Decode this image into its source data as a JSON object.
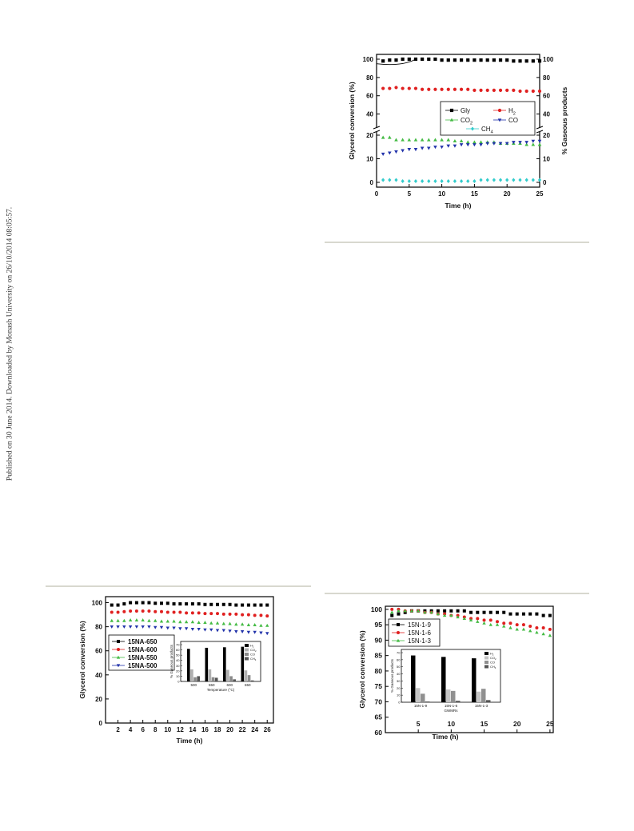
{
  "side_note": "Published on 30 June 2014. Downloaded by Monash University on 26/10/2014 08:05:57.",
  "chart_data": [
    {
      "id": "fig_top_right",
      "type": "scatter",
      "xlabel": "Time (h)",
      "ylabel_left": "Glycerol conversion (%)",
      "ylabel_right": "% Gaseous products",
      "xlim": [
        0,
        25
      ],
      "x_ticks": [
        0,
        5,
        10,
        15,
        20,
        25
      ],
      "y_upper_ticks": [
        40,
        60,
        80,
        100
      ],
      "y_lower_ticks": [
        0,
        10,
        20
      ],
      "axis_break": true,
      "legend_placement": "center-right",
      "series": [
        {
          "name": "Gly",
          "color": "#000000",
          "marker": "square",
          "panel": "upper",
          "x": [
            1,
            2,
            3,
            4,
            5,
            6,
            7,
            8,
            9,
            10,
            11,
            12,
            13,
            14,
            15,
            16,
            17,
            18,
            19,
            20,
            21,
            22,
            23,
            24,
            25
          ],
          "values": [
            98,
            99,
            99,
            100,
            100,
            100,
            100,
            100,
            100,
            99,
            99,
            99,
            99,
            99,
            99,
            99,
            99,
            99,
            99,
            99,
            98,
            98,
            98,
            98,
            98
          ]
        },
        {
          "name": "H2",
          "color": "#e02020",
          "marker": "circle",
          "panel": "upper",
          "x": [
            1,
            2,
            3,
            4,
            5,
            6,
            7,
            8,
            9,
            10,
            11,
            12,
            13,
            14,
            15,
            16,
            17,
            18,
            19,
            20,
            21,
            22,
            23,
            24,
            25
          ],
          "values": [
            68,
            68,
            69,
            68,
            68,
            68,
            67,
            67,
            67,
            67,
            67,
            67,
            67,
            67,
            66,
            66,
            66,
            66,
            66,
            66,
            66,
            65,
            65,
            65,
            65
          ]
        },
        {
          "name": "CO2",
          "color": "#44bb44",
          "marker": "triangle-up",
          "panel": "lower",
          "x": [
            1,
            2,
            3,
            4,
            5,
            6,
            7,
            8,
            9,
            10,
            11,
            12,
            13,
            14,
            15,
            16,
            17,
            18,
            19,
            20,
            21,
            22,
            23,
            24,
            25
          ],
          "values": [
            19,
            19,
            18,
            18,
            18,
            18,
            18,
            18,
            18,
            18,
            18,
            17.5,
            17.5,
            17,
            17,
            17,
            17,
            17,
            16.5,
            16.5,
            16.5,
            16.5,
            16,
            16,
            16
          ]
        },
        {
          "name": "CO",
          "color": "#2233aa",
          "marker": "triangle-down",
          "panel": "lower",
          "x": [
            1,
            2,
            3,
            4,
            5,
            6,
            7,
            8,
            9,
            10,
            11,
            12,
            13,
            14,
            15,
            16,
            17,
            18,
            19,
            20,
            21,
            22,
            23,
            24,
            25
          ],
          "values": [
            12,
            12.5,
            13,
            13.5,
            14,
            14,
            14.5,
            14.5,
            15,
            15,
            15.5,
            15.5,
            16,
            16,
            16,
            16,
            16.5,
            16.5,
            16.5,
            16.5,
            17,
            17,
            17,
            17.5,
            17.5
          ]
        },
        {
          "name": "CH4",
          "color": "#33cccc",
          "marker": "diamond",
          "panel": "lower",
          "x": [
            1,
            2,
            3,
            4,
            5,
            6,
            7,
            8,
            9,
            10,
            11,
            12,
            13,
            14,
            15,
            16,
            17,
            18,
            19,
            20,
            21,
            22,
            23,
            24,
            25
          ],
          "values": [
            1,
            1,
            1,
            0.5,
            0.5,
            0.5,
            0.5,
            0.5,
            0.5,
            0.5,
            0.5,
            0.5,
            0.5,
            0.5,
            0.5,
            1,
            1,
            1,
            1,
            1,
            1,
            1,
            1,
            1,
            1
          ]
        }
      ],
      "legend_entries": [
        "Gly",
        "H2",
        "CO2",
        "CO",
        "CH4"
      ]
    },
    {
      "id": "fig_bottom_left",
      "type": "scatter",
      "xlabel": "Time (h)",
      "ylabel": "Glycerol conversion (%)",
      "xlim": [
        0,
        27
      ],
      "ylim": [
        0,
        105
      ],
      "x_ticks": [
        2,
        4,
        6,
        8,
        10,
        12,
        14,
        16,
        18,
        20,
        22,
        24,
        26
      ],
      "y_ticks": [
        0,
        20,
        40,
        60,
        80,
        100
      ],
      "legend_placement": "left",
      "series": [
        {
          "name": "15NA-650",
          "color": "#000000",
          "marker": "square",
          "x": [
            1,
            2,
            3,
            4,
            5,
            6,
            7,
            8,
            9,
            10,
            11,
            12,
            13,
            14,
            15,
            16,
            17,
            18,
            19,
            20,
            21,
            22,
            23,
            24,
            25,
            26
          ],
          "values": [
            98,
            98,
            99,
            100,
            100,
            100,
            100,
            99.5,
            99.5,
            99.5,
            99,
            99,
            99,
            99,
            99,
            98.5,
            98.5,
            98.5,
            98.5,
            98.5,
            98,
            98,
            98,
            98,
            98,
            98
          ]
        },
        {
          "name": "15NA-600",
          "color": "#e02020",
          "marker": "circle",
          "x": [
            1,
            2,
            3,
            4,
            5,
            6,
            7,
            8,
            9,
            10,
            11,
            12,
            13,
            14,
            15,
            16,
            17,
            18,
            19,
            20,
            21,
            22,
            23,
            24,
            25,
            26
          ],
          "values": [
            92,
            92,
            92.5,
            93,
            93,
            93,
            93,
            92.5,
            92.5,
            92,
            92,
            92,
            91.5,
            91.5,
            91.5,
            91,
            91,
            91,
            90.5,
            90.5,
            90.5,
            90,
            90,
            89.5,
            89.5,
            89
          ]
        },
        {
          "name": "15NA-550",
          "color": "#44bb44",
          "marker": "triangle-up",
          "x": [
            1,
            2,
            3,
            4,
            5,
            6,
            7,
            8,
            9,
            10,
            11,
            12,
            13,
            14,
            15,
            16,
            17,
            18,
            19,
            20,
            21,
            22,
            23,
            24,
            25,
            26
          ],
          "values": [
            85,
            85,
            85,
            85.5,
            85.5,
            85.5,
            85,
            85,
            84.5,
            84.5,
            84.5,
            84,
            84,
            84,
            83.5,
            83.5,
            83,
            83,
            82.5,
            82.5,
            82,
            82,
            81.5,
            81.5,
            81,
            81
          ]
        },
        {
          "name": "15NA-500",
          "color": "#2233aa",
          "marker": "triangle-down",
          "x": [
            1,
            2,
            3,
            4,
            5,
            6,
            7,
            8,
            9,
            10,
            11,
            12,
            13,
            14,
            15,
            16,
            17,
            18,
            19,
            20,
            21,
            22,
            23,
            24,
            25,
            26
          ],
          "values": [
            80,
            80,
            80,
            80,
            80,
            80,
            80,
            79.5,
            79.5,
            79,
            79,
            78.5,
            78.5,
            78,
            78,
            77.5,
            77.5,
            77,
            77,
            76.5,
            76,
            76,
            75.5,
            75.5,
            75,
            74.5
          ]
        }
      ],
      "legend_entries": [
        "15NA-650",
        "15NA-600",
        "15NA-550",
        "15NA-500"
      ],
      "inset": {
        "type": "bar",
        "xlabel": "Temperature (°C)",
        "ylabel": "% Gaseous products",
        "categories": [
          "500",
          "550",
          "600",
          "650"
        ],
        "legend": [
          "H2",
          "CO2",
          "CO",
          "CH4"
        ],
        "colors": [
          "#000000",
          "#b0b0b0",
          "#8a8a8a",
          "#555555"
        ],
        "ylim": [
          0,
          70
        ],
        "series": [
          {
            "name": "H2",
            "values": [
              62,
              64,
              65,
              66
            ]
          },
          {
            "name": "CO2",
            "values": [
              23,
              23,
              22,
              21
            ]
          },
          {
            "name": "CO",
            "values": [
              8,
              8,
              10,
              12
            ]
          },
          {
            "name": "CH4",
            "values": [
              10,
              7,
              4,
              2
            ]
          }
        ]
      }
    },
    {
      "id": "fig_bottom_right",
      "type": "scatter",
      "xlabel": "Time (h)",
      "ylabel": "Glycerol conversion (%)",
      "xlim": [
        0,
        25.5
      ],
      "ylim": [
        60,
        101
      ],
      "x_ticks": [
        5,
        10,
        15,
        20,
        25
      ],
      "y_ticks": [
        60,
        65,
        70,
        75,
        80,
        85,
        90,
        95,
        100
      ],
      "legend_placement": "top-left",
      "series": [
        {
          "name": "15N-1-9",
          "color": "#000000",
          "marker": "square",
          "x": [
            1,
            2,
            3,
            4,
            5,
            6,
            7,
            8,
            9,
            10,
            11,
            12,
            13,
            14,
            15,
            16,
            17,
            18,
            19,
            20,
            21,
            22,
            23,
            24,
            25
          ],
          "values": [
            98,
            98.5,
            99,
            99.5,
            99.5,
            99.5,
            99.5,
            99.5,
            99.5,
            99.5,
            99.5,
            99.5,
            99,
            99,
            99,
            99,
            99,
            99,
            98.5,
            98.5,
            98.5,
            98.5,
            98.5,
            98,
            98
          ]
        },
        {
          "name": "15N-1-6",
          "color": "#e02020",
          "marker": "circle",
          "x": [
            1,
            2,
            3,
            4,
            5,
            6,
            7,
            8,
            9,
            10,
            11,
            12,
            13,
            14,
            15,
            16,
            17,
            18,
            19,
            20,
            21,
            22,
            23,
            24,
            25
          ],
          "values": [
            100,
            100,
            99.5,
            99.5,
            99.5,
            99,
            99,
            98.5,
            98.5,
            98,
            98,
            97.5,
            97,
            97,
            96.5,
            96.5,
            96,
            95.5,
            95.5,
            95,
            95,
            94.5,
            94,
            94,
            93.5
          ]
        },
        {
          "name": "15N-1-3",
          "color": "#44bb44",
          "marker": "triangle-up",
          "x": [
            1,
            2,
            3,
            4,
            5,
            6,
            7,
            8,
            9,
            10,
            11,
            12,
            13,
            14,
            15,
            16,
            17,
            18,
            19,
            20,
            21,
            22,
            23,
            24,
            25
          ],
          "values": [
            99,
            99.5,
            99.5,
            99.5,
            99.5,
            99,
            99,
            98.5,
            98,
            98,
            97.5,
            97,
            96.5,
            96,
            95.5,
            95,
            95,
            94.5,
            94,
            93.5,
            93.5,
            93,
            92.5,
            92,
            91.5
          ]
        }
      ],
      "legend_entries": [
        "15N-1-9",
        "15N-1-6",
        "15N-1-3"
      ],
      "inset": {
        "type": "bar",
        "xlabel": "GWMRs",
        "ylabel": "% Gaseous products",
        "categories": [
          "15N-1-9",
          "15N-1-6",
          "15N-1-3"
        ],
        "legend": [
          "H2",
          "CO2",
          "CO",
          "CH4"
        ],
        "colors": [
          "#000000",
          "#c4c4c4",
          "#909090",
          "#555555"
        ],
        "ylim": [
          0,
          70
        ],
        "series": [
          {
            "name": "H2",
            "values": [
              66,
              64,
              62
            ]
          },
          {
            "name": "CO2",
            "values": [
              20,
              18,
              15
            ]
          },
          {
            "name": "CO",
            "values": [
              12,
              16,
              19
            ]
          },
          {
            "name": "CH4",
            "values": [
              1,
              2,
              3
            ]
          }
        ]
      }
    }
  ]
}
